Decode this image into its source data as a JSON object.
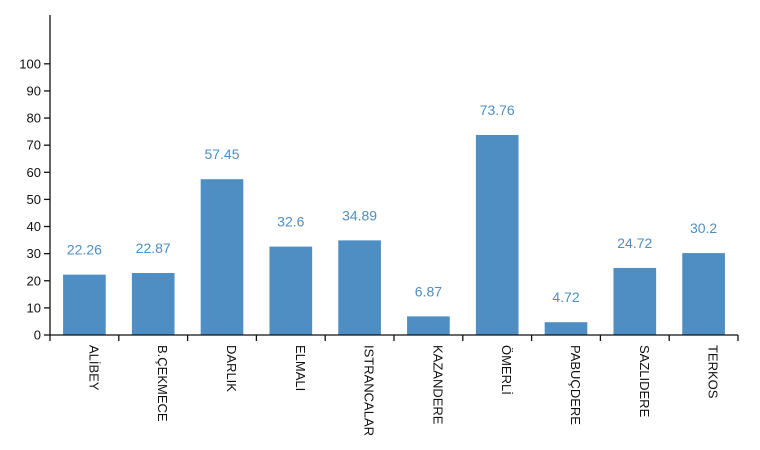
{
  "chart_data": {
    "type": "bar",
    "categories": [
      "ALİBEY",
      "B.ÇEKMECE",
      "DARLIK",
      "ELMALI",
      "ISTRANCALAR",
      "KAZANDERE",
      "ÖMERLİ",
      "PABUÇDERE",
      "SAZLIDERE",
      "TERKOS"
    ],
    "values": [
      22.26,
      22.87,
      57.45,
      32.6,
      34.89,
      6.87,
      73.76,
      4.72,
      24.72,
      30.2
    ],
    "value_labels": [
      "22.26",
      "22.87",
      "57.45",
      "32.6",
      "34.89",
      "6.87",
      "73.76",
      "4.72",
      "24.72",
      "30.2"
    ],
    "y_ticks": [
      0,
      10,
      20,
      30,
      40,
      50,
      60,
      70,
      80,
      90,
      100
    ],
    "ylim": [
      0,
      118
    ],
    "grid": false,
    "legend": "none",
    "title": "",
    "xlabel": "",
    "ylabel": "",
    "bar_color": "#4f8ec2",
    "label_color": "#4f8ec2"
  }
}
